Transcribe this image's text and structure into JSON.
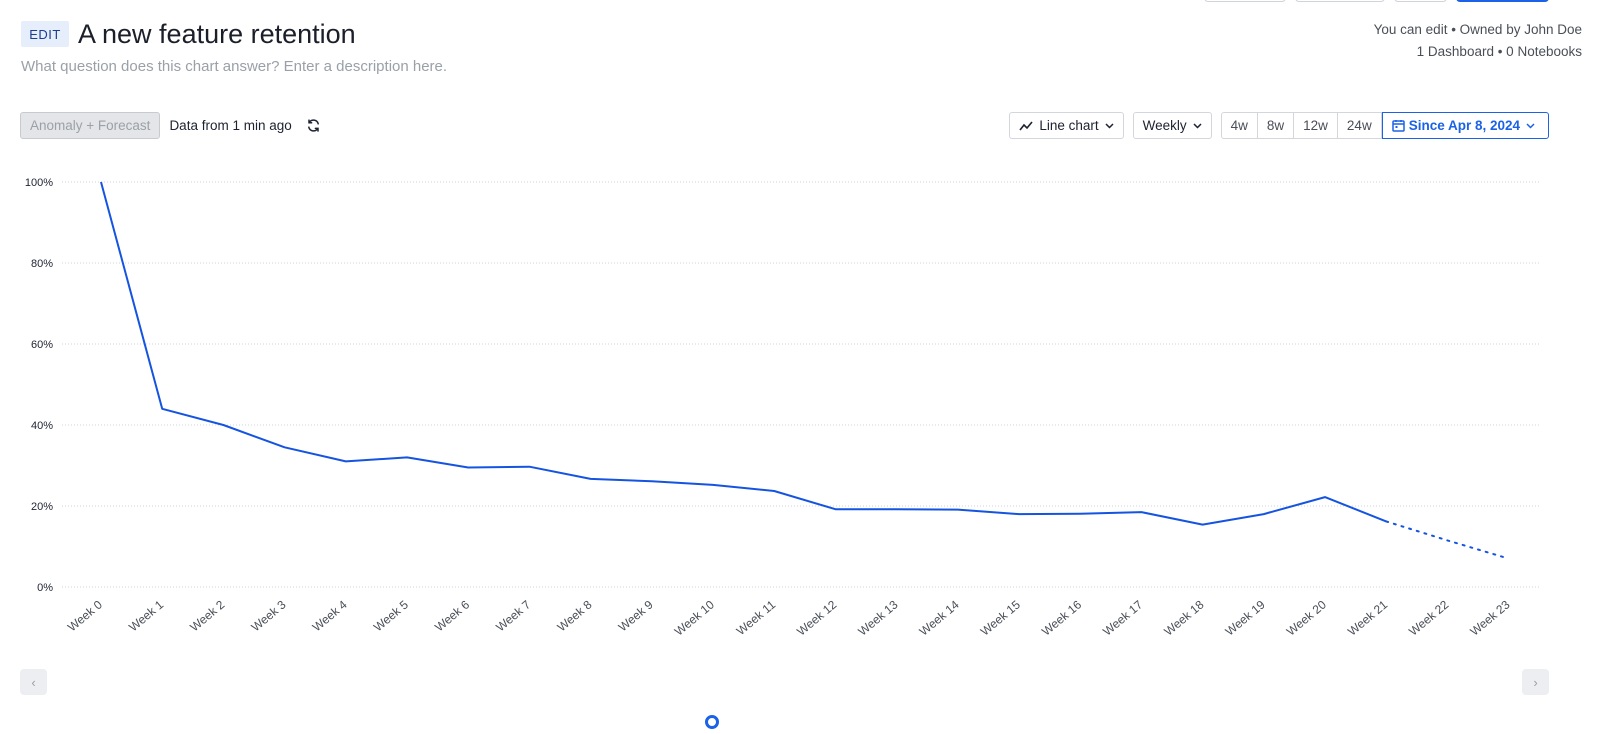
{
  "header": {
    "edit_label": "EDIT",
    "title": "A new feature retention",
    "description_placeholder": "What question does this chart answer? Enter a description here.",
    "ownership": "You can edit • Owned by John Doe",
    "usage": "1 Dashboard • 0 Notebooks"
  },
  "toolbar": {
    "anomaly_label": "Anomaly + Forecast",
    "data_from": "Data from 1 min ago",
    "chart_type_label": "Line chart",
    "interval_label": "Weekly",
    "ranges": [
      "4w",
      "8w",
      "12w",
      "24w"
    ],
    "date_range_label": "Since Apr 8, 2024"
  },
  "colors": {
    "accent": "#1b62e6",
    "line": "#1554e0",
    "grid": "#cfd3d8"
  },
  "chart_data": {
    "type": "line",
    "categories": [
      "Week 0",
      "Week 1",
      "Week 2",
      "Week 3",
      "Week 4",
      "Week 5",
      "Week 6",
      "Week 7",
      "Week 8",
      "Week 9",
      "Week 10",
      "Week 11",
      "Week 12",
      "Week 13",
      "Week 14",
      "Week 15",
      "Week 16",
      "Week 17",
      "Week 18",
      "Week 19",
      "Week 20",
      "Week 21",
      "Week 22",
      "Week 23"
    ],
    "series": [
      {
        "values": [
          100,
          44,
          40,
          34.5,
          31,
          32,
          29.5,
          29.7,
          26.7,
          26.1,
          25.2,
          23.7,
          19.2,
          19.2,
          19.1,
          18.0,
          18.1,
          18.5,
          15.4,
          18.0,
          22.2,
          16.2,
          null,
          null
        ],
        "forecast": [
          null,
          null,
          null,
          null,
          null,
          null,
          null,
          null,
          null,
          null,
          null,
          null,
          null,
          null,
          null,
          null,
          null,
          null,
          null,
          null,
          null,
          16.2,
          11.5,
          7
        ]
      }
    ],
    "yticks": [
      "0%",
      "20%",
      "40%",
      "60%",
      "80%",
      "100%"
    ],
    "ylim": [
      0,
      100
    ],
    "grid": true,
    "legend": "bottom"
  }
}
